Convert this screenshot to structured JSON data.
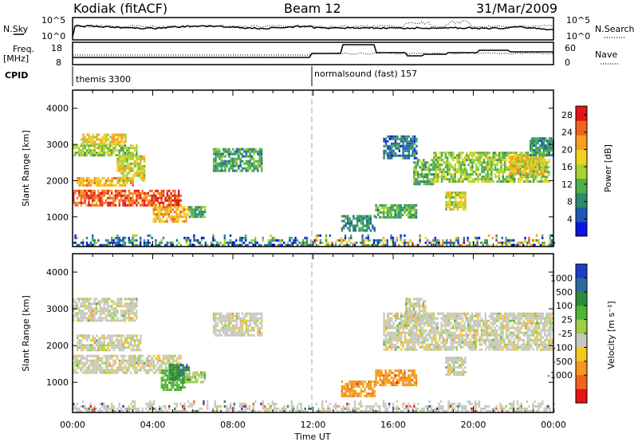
{
  "header": {
    "title": "Kodiak (fitACF)",
    "beam": "Beam 12",
    "date": "31/Mar/2009"
  },
  "summary_panels": {
    "nsky_label": "N.Sky",
    "nsearch_label": "N.Search",
    "freq_label_1": "Freq.",
    "freq_label_2": "[MHz]",
    "nave_label": "Nave",
    "cpid_label": "CPID",
    "noise_ticks_left": [
      "10^5",
      "10^0"
    ],
    "noise_ticks_right": [
      "10^5",
      "10^0"
    ],
    "freq_ticks": [
      "18",
      "8"
    ],
    "nave_ticks": [
      "60",
      "0"
    ],
    "cpid_segments": [
      {
        "label": "themis 3300",
        "start_hour": 0,
        "end_hour": 12
      },
      {
        "label": "normalsound (fast) 157",
        "start_hour": 12,
        "end_hour": 24
      }
    ]
  },
  "chart_data": [
    {
      "type": "heatmap",
      "panel": "power",
      "xlabel": "",
      "ylabel": "Slant Range [km]",
      "xlim": [
        0,
        24
      ],
      "ylim": [
        180,
        4500
      ],
      "x_ticks": [
        "00:00",
        "04:00",
        "08:00",
        "12:00",
        "16:00",
        "20:00",
        "00:00"
      ],
      "y_ticks": [
        1000,
        2000,
        3000,
        4000
      ],
      "colorbar": {
        "label": "Power [dB]",
        "ticks": [
          4,
          8,
          12,
          16,
          20,
          24,
          28
        ],
        "range": [
          0,
          30
        ],
        "colors": [
          "#0a14e6",
          "#1e5ab4",
          "#2e8a6e",
          "#4fb04a",
          "#a6d232",
          "#f0d21e",
          "#f5a01e",
          "#f0641e",
          "#e61414"
        ]
      },
      "regions": [
        {
          "t0": 0.0,
          "t1": 5.4,
          "r0": 1350,
          "r1": 1750,
          "level": 27
        },
        {
          "t0": 0.2,
          "t1": 3.0,
          "r0": 1850,
          "r1": 2100,
          "level": 22
        },
        {
          "t0": 0.0,
          "t1": 3.2,
          "r0": 2700,
          "r1": 3000,
          "level": 14
        },
        {
          "t0": 0.4,
          "t1": 2.6,
          "r0": 3000,
          "r1": 3300,
          "level": 19
        },
        {
          "t0": 2.2,
          "t1": 3.6,
          "r0": 2000,
          "r1": 2700,
          "level": 17
        },
        {
          "t0": 4.0,
          "t1": 5.8,
          "r0": 900,
          "r1": 1300,
          "level": 22
        },
        {
          "t0": 5.8,
          "t1": 6.6,
          "r0": 1000,
          "r1": 1300,
          "level": 10
        },
        {
          "t0": 7.0,
          "t1": 9.4,
          "r0": 2300,
          "r1": 2900,
          "level": 9
        },
        {
          "t0": 13.4,
          "t1": 15.1,
          "r0": 650,
          "r1": 1050,
          "level": 8
        },
        {
          "t0": 15.1,
          "t1": 17.2,
          "r0": 1000,
          "r1": 1350,
          "level": 10
        },
        {
          "t0": 17.0,
          "t1": 18.0,
          "r0": 1900,
          "r1": 2600,
          "level": 11
        },
        {
          "t0": 18.0,
          "t1": 23.8,
          "r0": 2000,
          "r1": 2800,
          "level": 14
        },
        {
          "t0": 18.6,
          "t1": 19.6,
          "r0": 1200,
          "r1": 1700,
          "level": 17
        },
        {
          "t0": 15.5,
          "t1": 17.2,
          "r0": 2600,
          "r1": 3250,
          "level": 6
        },
        {
          "t0": 21.8,
          "t1": 23.6,
          "r0": 2200,
          "r1": 2700,
          "level": 20
        },
        {
          "t0": 22.8,
          "t1": 24.0,
          "r0": 2700,
          "r1": 3200,
          "level": 8
        }
      ]
    },
    {
      "type": "heatmap",
      "panel": "velocity",
      "xlabel": "Time UT",
      "ylabel": "Slant Range [km]",
      "xlim": [
        0,
        24
      ],
      "ylim": [
        180,
        4500
      ],
      "x_ticks": [
        "00:00",
        "04:00",
        "08:00",
        "12:00",
        "16:00",
        "20:00",
        "00:00"
      ],
      "y_ticks": [
        1000,
        2000,
        3000,
        4000
      ],
      "colorbar": {
        "label": "Velocity [m s⁻¹]",
        "ticks": [
          "1000",
          "500",
          "100",
          "25",
          "-25",
          "-100",
          "-500",
          "-1000"
        ],
        "colors": [
          "#1e3cc8",
          "#2e6aa0",
          "#2e8a3c",
          "#50b432",
          "#9ccf46",
          "#c8c8c0",
          "#f5c81e",
          "#f5961e",
          "#f0641e",
          "#e61414"
        ]
      },
      "regions": [
        {
          "t0": 0.0,
          "t1": 5.4,
          "r0": 1250,
          "r1": 1750,
          "level": 5
        },
        {
          "t0": 0.2,
          "t1": 3.4,
          "r0": 1850,
          "r1": 2300,
          "level": 5
        },
        {
          "t0": 0.0,
          "t1": 3.2,
          "r0": 2700,
          "r1": 3300,
          "level": 5
        },
        {
          "t0": 4.4,
          "t1": 5.6,
          "r0": 800,
          "r1": 1350,
          "level": 3
        },
        {
          "t0": 4.8,
          "t1": 5.8,
          "r0": 1050,
          "r1": 1500,
          "level": 2
        },
        {
          "t0": 5.6,
          "t1": 6.6,
          "r0": 1000,
          "r1": 1300,
          "level": 4
        },
        {
          "t0": 7.0,
          "t1": 9.4,
          "r0": 2300,
          "r1": 2900,
          "level": 5
        },
        {
          "t0": 13.4,
          "t1": 15.1,
          "r0": 650,
          "r1": 1050,
          "level": 7
        },
        {
          "t0": 15.1,
          "t1": 17.2,
          "r0": 950,
          "r1": 1350,
          "level": 7
        },
        {
          "t0": 15.5,
          "t1": 24.0,
          "r0": 1900,
          "r1": 2900,
          "level": 5
        },
        {
          "t0": 18.6,
          "t1": 19.6,
          "r0": 1200,
          "r1": 1700,
          "level": 5
        },
        {
          "t0": 16.6,
          "t1": 17.6,
          "r0": 2700,
          "r1": 3300,
          "level": 5
        }
      ]
    }
  ]
}
